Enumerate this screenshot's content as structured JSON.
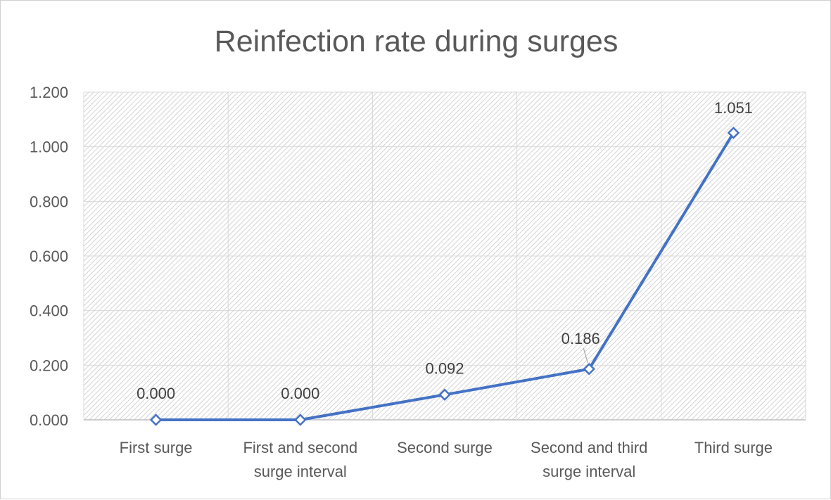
{
  "chart_data": {
    "type": "line",
    "title": "Reinfection rate during surges",
    "xlabel": "",
    "ylabel": "",
    "categories": [
      [
        "First surge"
      ],
      [
        "First and second",
        "surge interval"
      ],
      [
        "Second surge"
      ],
      [
        "Second and third",
        "surge interval"
      ],
      [
        "Third surge"
      ]
    ],
    "series": [
      {
        "values": [
          0.0,
          0.0,
          0.092,
          0.186,
          1.051
        ],
        "data_labels": [
          "0.000",
          "0.000",
          "0.092",
          "0.186",
          "1.051"
        ],
        "color": "#4472c4"
      }
    ],
    "ylim": [
      0,
      1.2
    ],
    "yticks": [
      0.0,
      0.2,
      0.4,
      0.6,
      0.8,
      1.0,
      1.2
    ],
    "ytick_labels": [
      "0.000",
      "0.200",
      "0.400",
      "0.600",
      "0.800",
      "1.000",
      "1.200"
    ],
    "grid": true,
    "plot_fill": "diagonal-hatch",
    "legend": "none"
  }
}
